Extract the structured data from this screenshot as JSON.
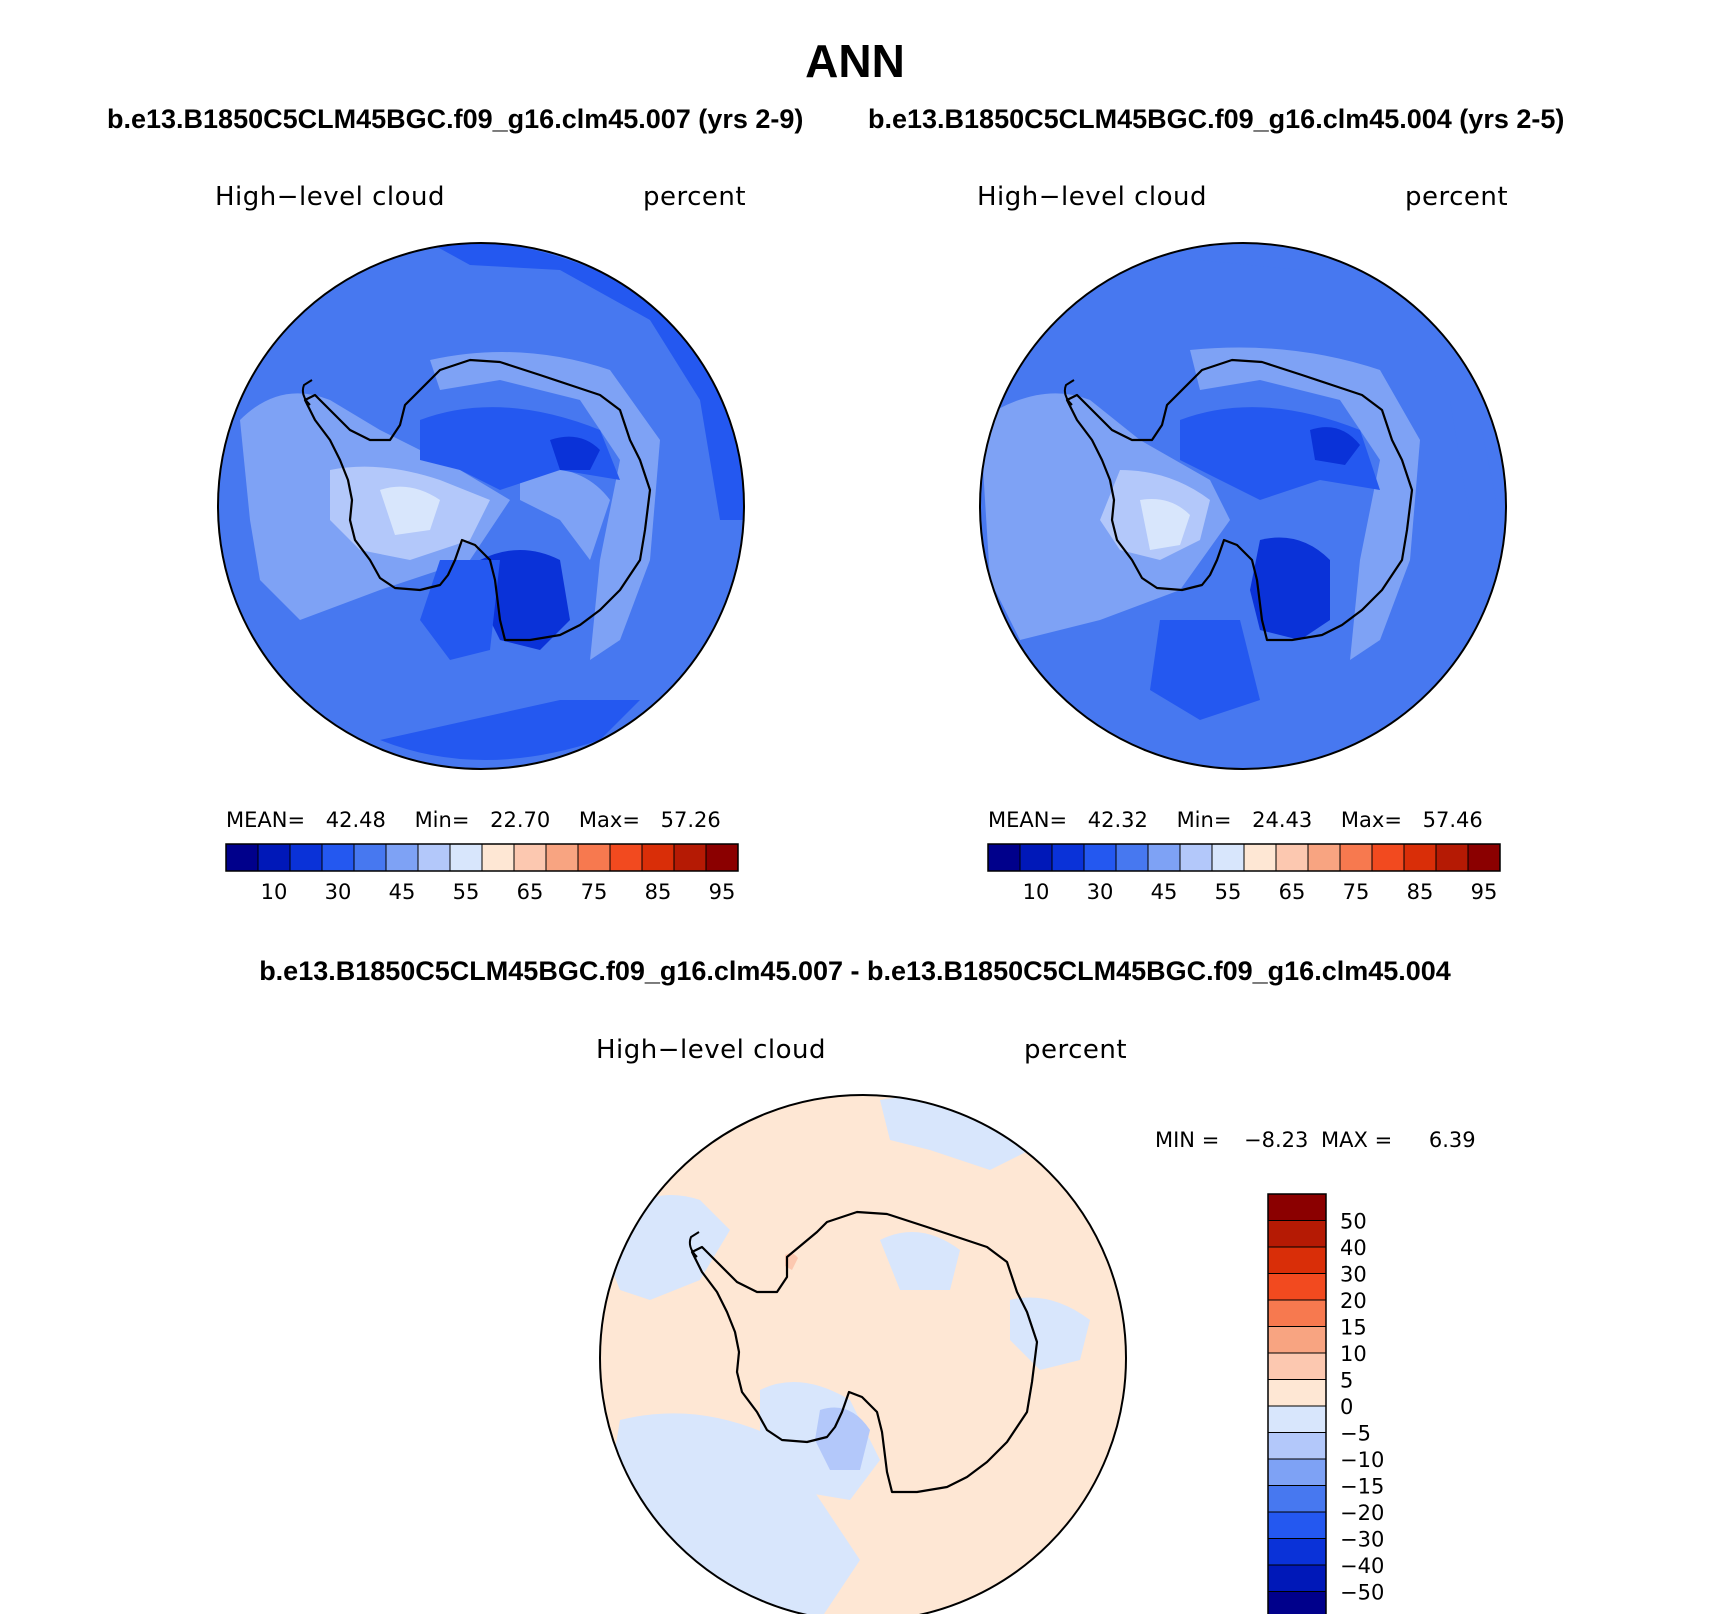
{
  "figure": {
    "title": "ANN",
    "case_a_title": "b.e13.B1850C5CLM45BGC.f09_g16.clm45.007 (yrs 2-9)",
    "case_b_title": "b.e13.B1850C5CLM45BGC.f09_g16.clm45.004 (yrs 2-5)",
    "diff_title": "b.e13.B1850C5CLM45BGC.f09_g16.clm45.007 - b.e13.B1850C5CLM45BGC.f09_g16.clm45.004"
  },
  "panels": [
    {
      "variable": "High−level cloud",
      "units": "percent",
      "stats": {
        "mean_label": "MEAN=",
        "mean": "42.48",
        "min_label": "Min=",
        "min": "22.70",
        "max_label": "Max=",
        "max": "57.26"
      }
    },
    {
      "variable": "High−level cloud",
      "units": "percent",
      "stats": {
        "mean_label": "MEAN=",
        "mean": "42.32",
        "min_label": "Min=",
        "min": "24.43",
        "max_label": "Max=",
        "max": "57.46"
      }
    },
    {
      "variable": "High−level cloud",
      "units": "percent",
      "stats": {
        "min_label": "MIN =",
        "min": "−8.23",
        "max_label": "MAX =",
        "max": "6.39"
      }
    }
  ],
  "chart_data": [
    {
      "type": "heatmap",
      "projection": "south polar stereographic",
      "field": "High-level cloud",
      "units": "percent",
      "mean": 42.48,
      "min": 22.7,
      "max": 57.26,
      "colorbar": {
        "orientation": "horizontal",
        "tick_labels": [
          "10",
          "30",
          "45",
          "55",
          "65",
          "75",
          "85",
          "95"
        ],
        "colors": [
          "#00008b",
          "#0018b8",
          "#0a32d8",
          "#2458f0",
          "#4778f0",
          "#7ea2f5",
          "#b3c8fa",
          "#d8e6fc",
          "#fee7d4",
          "#fcc8b0",
          "#f8a481",
          "#f7794f",
          "#f24a1f",
          "#d92e08",
          "#b51a04",
          "#8b0000"
        ]
      }
    },
    {
      "type": "heatmap",
      "projection": "south polar stereographic",
      "field": "High-level cloud",
      "units": "percent",
      "mean": 42.32,
      "min": 24.43,
      "max": 57.46,
      "colorbar": {
        "orientation": "horizontal",
        "tick_labels": [
          "10",
          "30",
          "45",
          "55",
          "65",
          "75",
          "85",
          "95"
        ],
        "colors": [
          "#00008b",
          "#0018b8",
          "#0a32d8",
          "#2458f0",
          "#4778f0",
          "#7ea2f5",
          "#b3c8fa",
          "#d8e6fc",
          "#fee7d4",
          "#fcc8b0",
          "#f8a481",
          "#f7794f",
          "#f24a1f",
          "#d92e08",
          "#b51a04",
          "#8b0000"
        ]
      }
    },
    {
      "type": "heatmap",
      "projection": "south polar stereographic",
      "field": "High-level cloud difference",
      "units": "percent",
      "min": -8.23,
      "max": 6.39,
      "colorbar": {
        "orientation": "vertical",
        "tick_labels": [
          "50",
          "40",
          "30",
          "20",
          "15",
          "10",
          "5",
          "0",
          "−5",
          "−10",
          "−15",
          "−20",
          "−30",
          "−40",
          "−50"
        ],
        "colors": [
          "#8b0000",
          "#b51a04",
          "#d92e08",
          "#f24a1f",
          "#f7794f",
          "#f8a481",
          "#fcc8b0",
          "#fee7d4",
          "#d8e6fc",
          "#b3c8fa",
          "#7ea2f5",
          "#4778f0",
          "#2458f0",
          "#0a32d8",
          "#0018b8",
          "#00008b"
        ]
      }
    }
  ]
}
